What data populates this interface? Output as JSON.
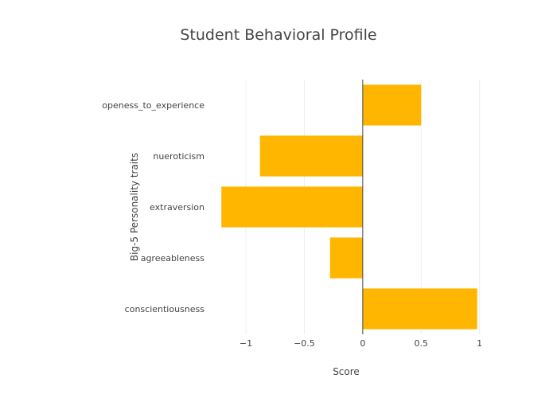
{
  "chart_data": {
    "type": "bar",
    "orientation": "horizontal",
    "title": "Student Behavioral Profile",
    "xlabel": "Score",
    "ylabel": "Big-5 Personality traits",
    "categories": [
      "conscientiousness",
      "agreeableness",
      "extraversion",
      "nueroticism",
      "openess_to_experience"
    ],
    "values": [
      0.98,
      -0.28,
      -1.21,
      -0.88,
      0.5
    ],
    "xlim": [
      -1.3,
      1.05
    ],
    "xticks": [
      -1,
      -0.5,
      0,
      0.5,
      1
    ],
    "xtick_labels": [
      "−1",
      "−0.5",
      "0",
      "0.5",
      "1"
    ],
    "grid": true,
    "legend": "none",
    "bar_color": "#FFB600"
  }
}
